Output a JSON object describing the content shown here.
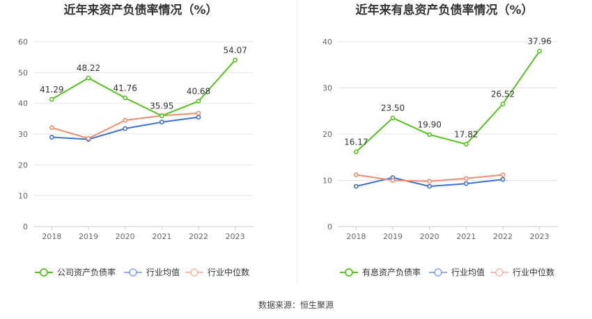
{
  "source": "数据来源：恒生聚源",
  "colors": {
    "green": "#52c41a",
    "blue": "#3a6fd8",
    "orange": "#f08c6c",
    "grid": "#e6e6e6",
    "axis": "#cccccc",
    "divider": "#e8e8e8"
  },
  "chart_data": [
    {
      "type": "line",
      "title": "近年来资产负债率情况（%）",
      "categories": [
        "2018",
        "2019",
        "2020",
        "2021",
        "2022",
        "2023"
      ],
      "ylim": [
        0,
        60
      ],
      "yticks": [
        0,
        10,
        20,
        30,
        40,
        50,
        60
      ],
      "grid": true,
      "legend_position": "bottom",
      "series": [
        {
          "name": "公司资产负债率",
          "color": "#52c41a",
          "labels": true,
          "values": [
            41.29,
            48.22,
            41.76,
            35.95,
            40.68,
            54.07
          ]
        },
        {
          "name": "行业均值",
          "color": "#3a6fd8",
          "labels": false,
          "values": [
            29.0,
            28.3,
            31.8,
            33.9,
            35.5,
            null
          ]
        },
        {
          "name": "行业中位数",
          "color": "#f08c6c",
          "labels": false,
          "values": [
            32.1,
            28.6,
            34.5,
            36.0,
            36.8,
            null
          ]
        }
      ]
    },
    {
      "type": "line",
      "title": "近年来有息资产负债率情况（%）",
      "categories": [
        "2018",
        "2019",
        "2020",
        "2021",
        "2022",
        "2023"
      ],
      "ylim": [
        0,
        40
      ],
      "yticks": [
        0,
        10,
        20,
        30,
        40
      ],
      "grid": true,
      "legend_position": "bottom",
      "series": [
        {
          "name": "有息资产负债率",
          "color": "#52c41a",
          "labels": true,
          "values": [
            16.17,
            23.5,
            19.9,
            17.82,
            26.52,
            37.96
          ]
        },
        {
          "name": "行业均值",
          "color": "#3a6fd8",
          "labels": false,
          "values": [
            8.7,
            10.6,
            8.7,
            9.3,
            10.2,
            null
          ]
        },
        {
          "name": "行业中位数",
          "color": "#f08c6c",
          "labels": false,
          "values": [
            11.2,
            10.0,
            9.8,
            10.4,
            11.2,
            null
          ]
        }
      ]
    }
  ]
}
